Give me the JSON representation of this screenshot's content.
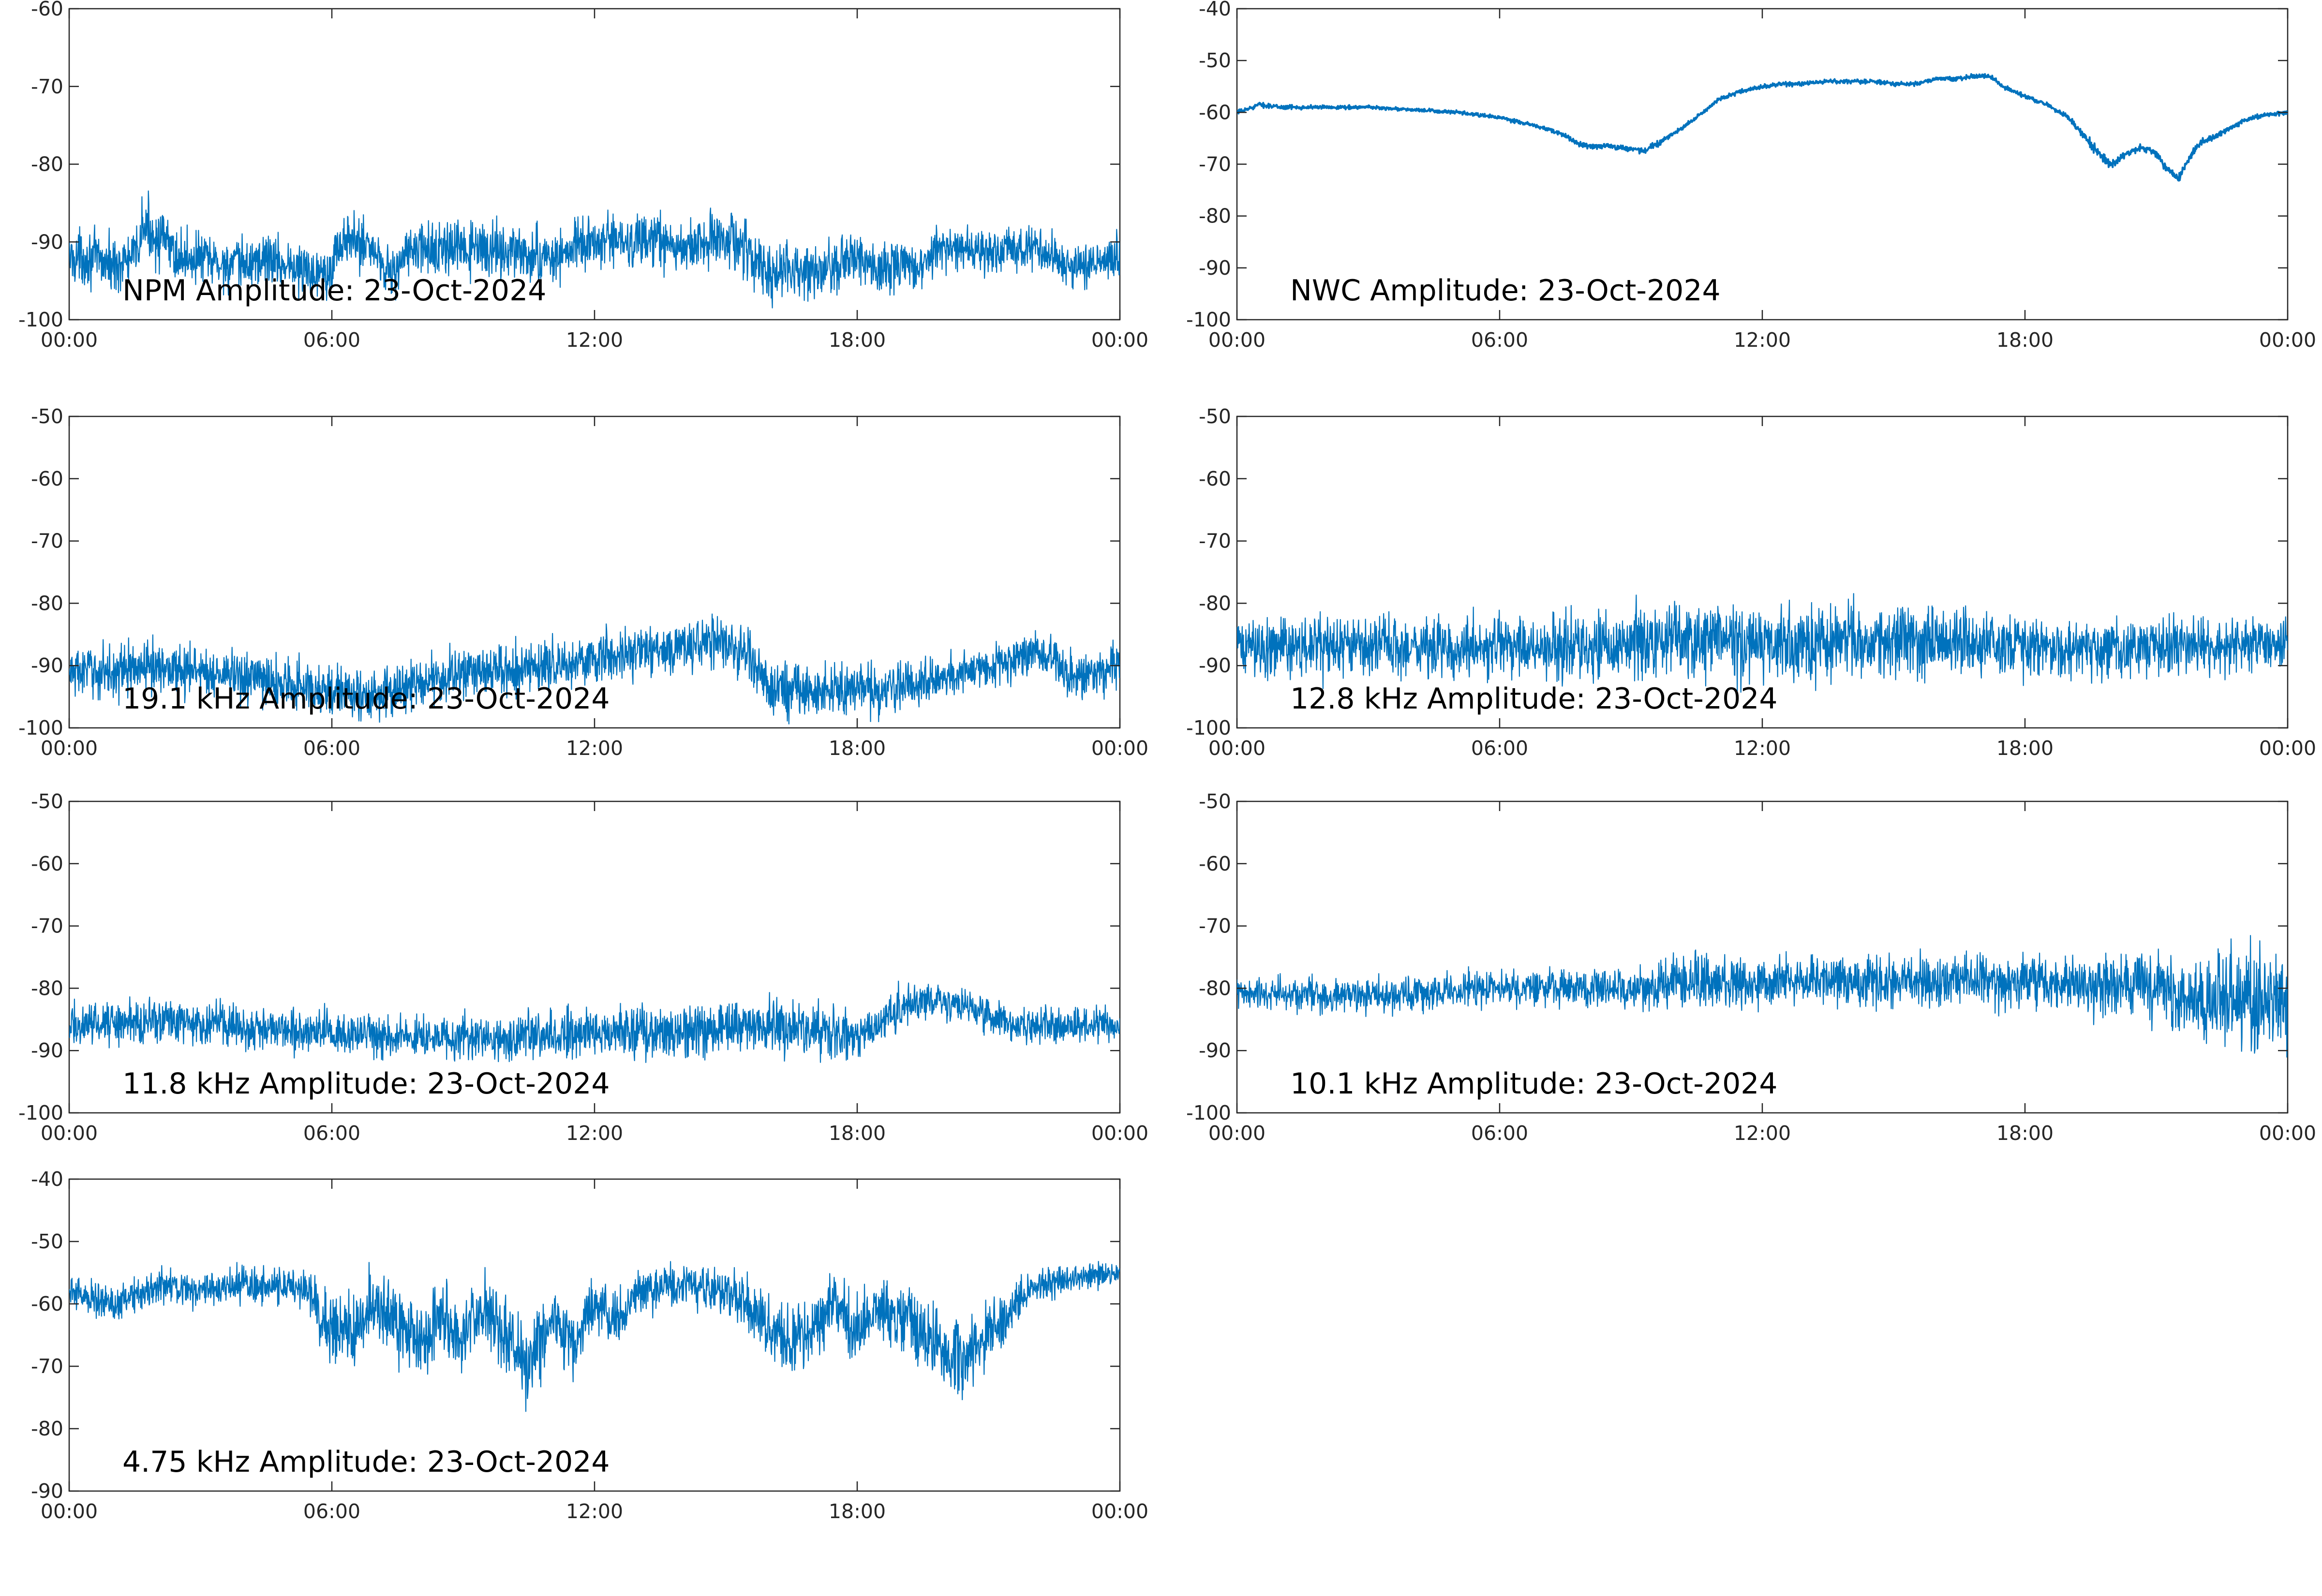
{
  "chart_data": [
    {
      "type": "line",
      "title": "NPM Amplitude: 23-Oct-2024",
      "x_ticks": [
        "00:00",
        "06:00",
        "12:00",
        "18:00",
        "00:00"
      ],
      "xlim": [
        0,
        24
      ],
      "ylim": [
        -100,
        -60
      ],
      "y_ticks": [
        -100,
        -90,
        -80,
        -70,
        -60
      ],
      "color": "#0072BD",
      "series": [
        {
          "x": [
            0,
            0.5,
            1,
            1.5,
            1.7,
            2.2,
            2.5,
            3,
            3.5,
            4,
            4.5,
            5,
            5.5,
            6,
            6.2,
            6.8,
            7.2,
            7.4,
            7.8,
            8,
            8.5,
            9,
            9.5,
            10,
            10.5,
            11,
            11.5,
            12,
            12.5,
            13,
            13.5,
            14,
            14.5,
            15,
            15.5,
            15.9,
            16.4,
            17,
            17.5,
            18,
            18.5,
            19,
            19.5,
            19.8,
            20.5,
            21,
            21.5,
            22,
            22.5,
            23,
            23.5,
            24
          ],
          "y": [
            -92,
            -92,
            -93,
            -92,
            -88,
            -90,
            -92,
            -92,
            -93,
            -93,
            -92,
            -93,
            -94,
            -93,
            -90,
            -90,
            -93,
            -94,
            -91,
            -91,
            -91,
            -91,
            -91,
            -91,
            -92,
            -92,
            -91,
            -90,
            -90,
            -90,
            -90,
            -91,
            -90,
            -89,
            -91,
            -94,
            -94,
            -94,
            -93,
            -92,
            -94,
            -93,
            -94,
            -91,
            -91,
            -91,
            -91,
            -91,
            -92,
            -93,
            -93,
            -92
          ],
          "band": [
            5,
            5,
            5,
            5,
            6,
            5,
            5,
            5,
            5,
            5,
            5,
            5,
            5,
            5,
            5,
            5,
            5,
            5,
            5,
            5,
            5,
            5,
            5,
            5,
            5,
            5,
            5,
            5,
            5,
            5,
            5,
            5,
            5,
            5,
            5,
            5,
            5,
            5,
            5,
            5,
            5,
            5,
            5,
            4,
            4,
            4,
            4,
            4,
            4,
            4,
            4,
            4
          ]
        }
      ]
    },
    {
      "type": "line",
      "title": "NWC Amplitude: 23-Oct-2024",
      "x_ticks": [
        "00:00",
        "06:00",
        "12:00",
        "18:00",
        "00:00"
      ],
      "xlim": [
        0,
        24
      ],
      "ylim": [
        -100,
        -40
      ],
      "y_ticks": [
        -100,
        -90,
        -80,
        -70,
        -60,
        -50,
        -40
      ],
      "color": "#0072BD",
      "series": [
        {
          "x": [
            0,
            0.2,
            0.5,
            1,
            2,
            3,
            4,
            5,
            5.5,
            6,
            6.5,
            7,
            7.5,
            7.8,
            8,
            8.5,
            9,
            9.3,
            9.6,
            10,
            10.5,
            10.8,
            11,
            11.5,
            12,
            12.5,
            13,
            13.5,
            14,
            14.5,
            15,
            15.5,
            16,
            16.5,
            16.9,
            17.2,
            17.5,
            18,
            18.5,
            19,
            19.2,
            19.5,
            19.8,
            20,
            20.3,
            20.6,
            20.8,
            21,
            21.2,
            21.5,
            21.8,
            22,
            22.5,
            23,
            23.5,
            24
          ],
          "y": [
            -60,
            -59.5,
            -58.5,
            -59,
            -59,
            -59,
            -59.5,
            -60,
            -60.5,
            -61,
            -62,
            -63,
            -64.5,
            -66,
            -66.5,
            -66.5,
            -67,
            -67.5,
            -66,
            -64,
            -61,
            -59,
            -57.5,
            -56,
            -55,
            -54.5,
            -54.5,
            -54,
            -54,
            -54,
            -54.5,
            -54.5,
            -53.5,
            -53.5,
            -53,
            -53,
            -55,
            -57,
            -58.5,
            -61,
            -63,
            -66,
            -69,
            -70,
            -68,
            -67,
            -67,
            -68,
            -70.5,
            -73,
            -68,
            -66,
            -64,
            -61.5,
            -60.5,
            -60
          ],
          "band": [
            0.6,
            0.6,
            0.6,
            0.6,
            0.5,
            0.5,
            0.5,
            0.5,
            0.5,
            0.5,
            0.6,
            0.6,
            0.6,
            0.8,
            0.8,
            0.8,
            0.8,
            0.8,
            0.8,
            0.6,
            0.6,
            0.6,
            0.6,
            0.6,
            0.6,
            0.6,
            0.6,
            0.6,
            0.6,
            0.6,
            0.6,
            0.6,
            0.6,
            0.6,
            0.6,
            0.6,
            0.6,
            0.6,
            0.6,
            0.6,
            1,
            1.2,
            1.2,
            1.2,
            1,
            1,
            1,
            1,
            1.2,
            1.2,
            1,
            1,
            0.8,
            0.6,
            0.6,
            0.6
          ]
        }
      ]
    },
    {
      "type": "line",
      "title": "19.1 kHz Amplitude: 23-Oct-2024",
      "x_ticks": [
        "00:00",
        "06:00",
        "12:00",
        "18:00",
        "00:00"
      ],
      "xlim": [
        0,
        24
      ],
      "ylim": [
        -100,
        -50
      ],
      "y_ticks": [
        -100,
        -90,
        -80,
        -70,
        -60,
        -50
      ],
      "color": "#0072BD",
      "series": [
        {
          "x": [
            0,
            1,
            2,
            3,
            4,
            5,
            6,
            7,
            7.5,
            8,
            9,
            10,
            11,
            12,
            13,
            14,
            14.5,
            15,
            15.5,
            15.8,
            16,
            17,
            18,
            18.5,
            19,
            20,
            21,
            22,
            22.5,
            22.8,
            23.5,
            24
          ],
          "y": [
            -91,
            -91,
            -90,
            -91,
            -92,
            -93,
            -94,
            -95,
            -94,
            -93,
            -91,
            -91,
            -90,
            -89,
            -88,
            -87,
            -86,
            -87,
            -88,
            -91,
            -94,
            -94,
            -93,
            -94,
            -93,
            -92,
            -90,
            -88,
            -88,
            -92,
            -91,
            -89
          ],
          "band": [
            6,
            6,
            6,
            6,
            6,
            6,
            6,
            6,
            6,
            6,
            6,
            6,
            6,
            6,
            6,
            6,
            6,
            6,
            6,
            6,
            6,
            6,
            6,
            6,
            5,
            5,
            5,
            5,
            5,
            6,
            6,
            6
          ]
        }
      ]
    },
    {
      "type": "line",
      "title": "12.8 kHz Amplitude: 23-Oct-2024",
      "x_ticks": [
        "00:00",
        "06:00",
        "12:00",
        "18:00",
        "00:00"
      ],
      "xlim": [
        0,
        24
      ],
      "ylim": [
        -100,
        -50
      ],
      "y_ticks": [
        -100,
        -90,
        -80,
        -70,
        -60,
        -50
      ],
      "color": "#0072BD",
      "series": [
        {
          "x": [
            0,
            2,
            4,
            6,
            8,
            10,
            12,
            14,
            16,
            18,
            20,
            22,
            24
          ],
          "y": [
            -87,
            -87,
            -87,
            -87,
            -87,
            -86,
            -86,
            -86,
            -86,
            -87,
            -87,
            -87,
            -86
          ],
          "band": [
            7,
            7,
            7,
            7,
            8,
            9,
            9,
            9,
            8,
            7,
            7,
            6,
            6
          ]
        }
      ]
    },
    {
      "type": "line",
      "title": "11.8 kHz Amplitude: 23-Oct-2024",
      "x_ticks": [
        "00:00",
        "06:00",
        "12:00",
        "18:00",
        "00:00"
      ],
      "xlim": [
        0,
        24
      ],
      "ylim": [
        -100,
        -50
      ],
      "y_ticks": [
        -100,
        -90,
        -80,
        -70,
        -60,
        -50
      ],
      "color": "#0072BD",
      "series": [
        {
          "x": [
            0,
            2,
            4,
            6,
            8,
            10,
            12,
            14,
            16,
            18,
            18.5,
            19,
            19.5,
            20,
            21,
            21.5,
            22,
            23,
            24
          ],
          "y": [
            -86,
            -85,
            -86,
            -87,
            -88,
            -88,
            -87,
            -87,
            -86,
            -88,
            -86,
            -83,
            -82,
            -82,
            -84,
            -86,
            -86,
            -86,
            -86
          ],
          "band": [
            5,
            5,
            5,
            5,
            5,
            5,
            6,
            6,
            6,
            6,
            5,
            5,
            4,
            4,
            4,
            4,
            4,
            4,
            4
          ]
        }
      ]
    },
    {
      "type": "line",
      "title": "10.1 kHz Amplitude: 23-Oct-2024",
      "x_ticks": [
        "00:00",
        "06:00",
        "12:00",
        "18:00",
        "00:00"
      ],
      "xlim": [
        0,
        24
      ],
      "ylim": [
        -100,
        -50
      ],
      "y_ticks": [
        -100,
        -90,
        -80,
        -70,
        -60,
        -50
      ],
      "color": "#0072BD",
      "series": [
        {
          "x": [
            0,
            2,
            4,
            6,
            8,
            9.5,
            10,
            12,
            14,
            16,
            18,
            19,
            20,
            21,
            22,
            23,
            24
          ],
          "y": [
            -81,
            -81,
            -81,
            -80,
            -80,
            -80,
            -79,
            -79,
            -79,
            -79,
            -79,
            -79,
            -80,
            -80,
            -82,
            -82,
            -82
          ],
          "band": [
            4,
            4,
            4,
            4,
            4,
            5,
            6,
            6,
            6,
            6,
            6,
            6,
            8,
            8,
            10,
            12,
            12
          ]
        }
      ]
    },
    {
      "type": "line",
      "title": "4.75 kHz Amplitude: 23-Oct-2024",
      "x_ticks": [
        "00:00",
        "06:00",
        "12:00",
        "18:00",
        "00:00"
      ],
      "xlim": [
        0,
        24
      ],
      "ylim": [
        -90,
        -40
      ],
      "y_ticks": [
        -90,
        -80,
        -70,
        -60,
        -50,
        -40
      ],
      "color": "#0072BD",
      "series": [
        {
          "x": [
            0,
            1,
            2,
            3,
            4,
            5,
            5.5,
            6,
            6.5,
            7,
            7.5,
            8,
            8.5,
            9,
            9.5,
            10,
            10.5,
            11,
            11.5,
            12,
            12.5,
            13,
            14,
            15,
            16,
            16.5,
            17,
            17.5,
            18,
            18.5,
            19,
            19.5,
            20,
            20.5,
            21,
            21.5,
            22,
            23,
            24
          ],
          "y": [
            -58,
            -60,
            -57,
            -58,
            -57,
            -57,
            -58,
            -66,
            -64,
            -60,
            -63,
            -67,
            -62,
            -65,
            -60,
            -66,
            -70,
            -63,
            -66,
            -60,
            -63,
            -58,
            -57,
            -58,
            -63,
            -67,
            -63,
            -60,
            -64,
            -61,
            -62,
            -64,
            -67,
            -69,
            -64,
            -62,
            -57,
            -56,
            -55
          ],
          "band": [
            4,
            4,
            4,
            4,
            4,
            4,
            5,
            9,
            9,
            8,
            9,
            9,
            8,
            9,
            8,
            9,
            9,
            8,
            8,
            6,
            6,
            5,
            5,
            5,
            8,
            9,
            8,
            7,
            8,
            7,
            8,
            8,
            9,
            9,
            8,
            7,
            4,
            3,
            3
          ]
        }
      ]
    }
  ]
}
